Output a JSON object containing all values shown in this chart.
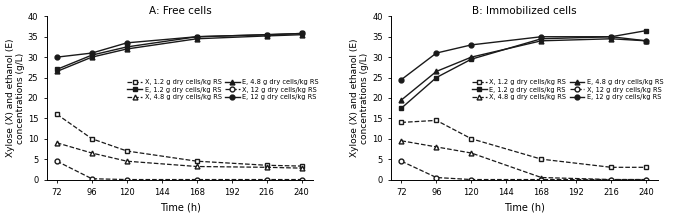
{
  "time": [
    72,
    96,
    120,
    168,
    216,
    240
  ],
  "A_E_1p2": [
    27.0,
    30.5,
    32.5,
    35.0,
    35.5,
    35.8
  ],
  "A_E_4p8": [
    26.5,
    30.0,
    32.0,
    34.5,
    35.2,
    35.5
  ],
  "A_E_12": [
    30.0,
    31.0,
    33.5,
    35.0,
    35.5,
    35.8
  ],
  "A_X_1p2": [
    16.0,
    10.0,
    7.0,
    4.5,
    3.5,
    3.3
  ],
  "A_X_4p8": [
    9.0,
    6.5,
    4.5,
    3.2,
    3.0,
    2.8
  ],
  "A_X_12": [
    4.5,
    0.2,
    0.0,
    0.0,
    0.0,
    0.0
  ],
  "B_E_1p2": [
    17.5,
    25.0,
    29.5,
    34.5,
    35.0,
    36.5
  ],
  "B_E_4p8": [
    19.5,
    26.5,
    30.0,
    34.0,
    34.5,
    34.0
  ],
  "B_E_12": [
    24.5,
    31.0,
    33.0,
    35.0,
    35.0,
    34.0
  ],
  "B_X_1p2": [
    14.0,
    14.5,
    10.0,
    5.0,
    3.0,
    3.0
  ],
  "B_X_4p8": [
    9.5,
    8.0,
    6.5,
    0.5,
    0.0,
    0.0
  ],
  "B_X_12": [
    4.5,
    0.5,
    0.0,
    0.0,
    0.0,
    0.0
  ],
  "title_A": "A: Free cells",
  "title_B": "B: Immobilized cells",
  "xlabel": "Time (h)",
  "ylabel_left": "Xylose (X) and ethanol (E)\nconcentrations (g/L)",
  "ylim": [
    0,
    40
  ],
  "yticks": [
    0,
    5,
    10,
    15,
    20,
    25,
    30,
    35,
    40
  ],
  "xticks": [
    72,
    96,
    120,
    144,
    168,
    192,
    216,
    240
  ],
  "legend_labels_X": [
    "X, 1.2 g dry cells/kg RS",
    "X, 4.8 g dry cells/kg RS",
    "X, 12 g dry cells/kg RS"
  ],
  "legend_labels_E": [
    "E, 1.2 g dry cells/kg RS",
    "E, 4.8 g dry cells/kg RS",
    "E, 12 g dry cells/kg RS"
  ],
  "line_color": "#1a1a1a",
  "bg_color": "#ffffff"
}
